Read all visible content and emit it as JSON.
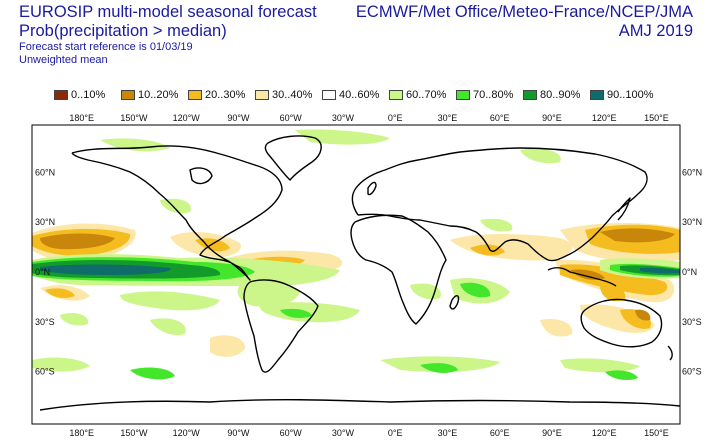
{
  "header": {
    "title": "EUROSIP multi-model seasonal forecast",
    "subtitle": "Prob(precipitation > median)",
    "reference": "Forecast start reference is 01/03/19",
    "mean_type": "Unweighted mean",
    "providers": "ECMWF/Met Office/Meteo-France/NCEP/JMA",
    "season": "AMJ 2019"
  },
  "legend": [
    {
      "label": "0..10%",
      "color": "#8b2a0a"
    },
    {
      "label": "10..20%",
      "color": "#c8860a"
    },
    {
      "label": "20..30%",
      "color": "#f4bc1e"
    },
    {
      "label": "30..40%",
      "color": "#fde7a8"
    },
    {
      "label": "40..60%",
      "color": "#ffffff"
    },
    {
      "label": "60..70%",
      "color": "#ccf58a"
    },
    {
      "label": "70..80%",
      "color": "#44e62c"
    },
    {
      "label": "80..90%",
      "color": "#129a2a"
    },
    {
      "label": "90..100%",
      "color": "#0f6c6a"
    }
  ],
  "axes": {
    "lon_labels": [
      "180°E",
      "150°W",
      "120°W",
      "90°W",
      "60°W",
      "30°W",
      "0°E",
      "30°E",
      "60°E",
      "90°E",
      "120°E",
      "150°E"
    ],
    "lat_labels": [
      "60°N",
      "30°N",
      "0°N",
      "30°S",
      "60°S"
    ]
  },
  "colors": {
    "text_blue": "#1a1aa0",
    "coastline": "#000000",
    "frame": "#000000"
  }
}
